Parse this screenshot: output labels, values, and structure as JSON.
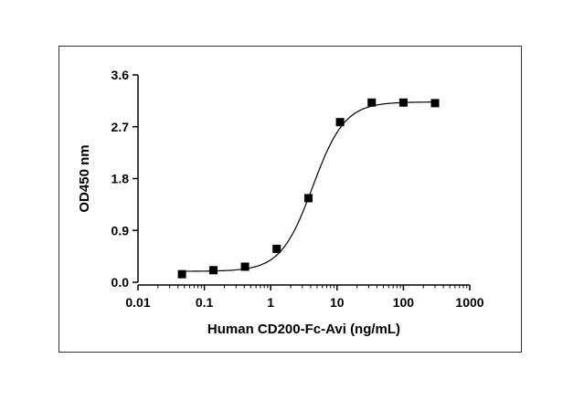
{
  "chart_data": {
    "type": "scatter",
    "title": "",
    "xlabel": "Human CD200-Fc-Avi (ng/mL)",
    "ylabel": "OD450 nm",
    "x_scale": "log10",
    "xlim": [
      0.01,
      1000
    ],
    "ylim": [
      0.0,
      3.6
    ],
    "x_ticks": [
      "0.01",
      "0.1",
      "1",
      "10",
      "100",
      "1000"
    ],
    "y_ticks": [
      "0.0",
      "0.9",
      "1.8",
      "2.7",
      "3.6"
    ],
    "grid": false,
    "legend": "none",
    "marker": "square",
    "color": "#000000",
    "series": [
      {
        "x": [
          0.046,
          0.137,
          0.41,
          1.23,
          3.7,
          11.1,
          33.3,
          100,
          300
        ],
        "y": [
          0.14,
          0.21,
          0.27,
          0.58,
          1.46,
          2.78,
          3.12,
          3.12,
          3.11
        ]
      }
    ],
    "fit": {
      "model": "4PL",
      "bottom": 0.19,
      "top": 3.13,
      "ec50": 4.3,
      "hill": 1.8
    }
  }
}
